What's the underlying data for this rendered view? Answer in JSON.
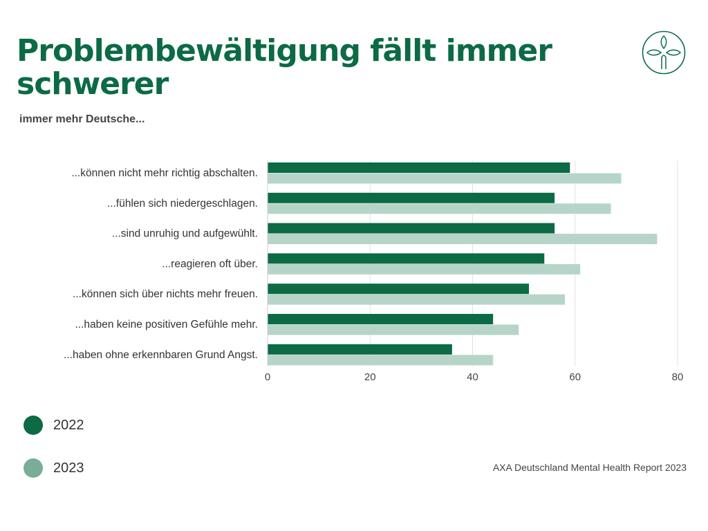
{
  "header": {
    "title": "Problembewältigung fällt immer schwerer",
    "subtitle": "immer mehr Deutsche..."
  },
  "logo": {
    "icon": "leaf-emblem-icon",
    "color": "#0c6a45"
  },
  "colors": {
    "title": "#0c6a45",
    "series_2022": "#0c6a45",
    "series_2023": "#b6d5c8",
    "legend_2023": "#79ad97",
    "grid": "#e2e2e2"
  },
  "chart_data": {
    "type": "bar",
    "orientation": "horizontal",
    "categories": [
      "...können nicht mehr richtig abschalten.",
      "...fühlen sich niedergeschlagen.",
      "...sind unruhig und aufgewühlt.",
      "...reagieren oft über.",
      "...können sich über nichts mehr freuen.",
      "...haben keine positiven Gefühle mehr.",
      "...haben ohne erkennbaren Grund Angst."
    ],
    "series": [
      {
        "name": "2022",
        "values": [
          59,
          56,
          56,
          54,
          51,
          44,
          36
        ]
      },
      {
        "name": "2023",
        "values": [
          69,
          67,
          76,
          61,
          58,
          49,
          44
        ]
      }
    ],
    "xlim": [
      0,
      80
    ],
    "xticks": [
      0,
      20,
      40,
      60,
      80
    ],
    "grid": true,
    "legend_position": "bottom-left"
  },
  "legend": {
    "items": [
      {
        "label": "2022"
      },
      {
        "label": "2023"
      }
    ]
  },
  "footer": {
    "source": "AXA Deutschland Mental Health Report 2023"
  }
}
